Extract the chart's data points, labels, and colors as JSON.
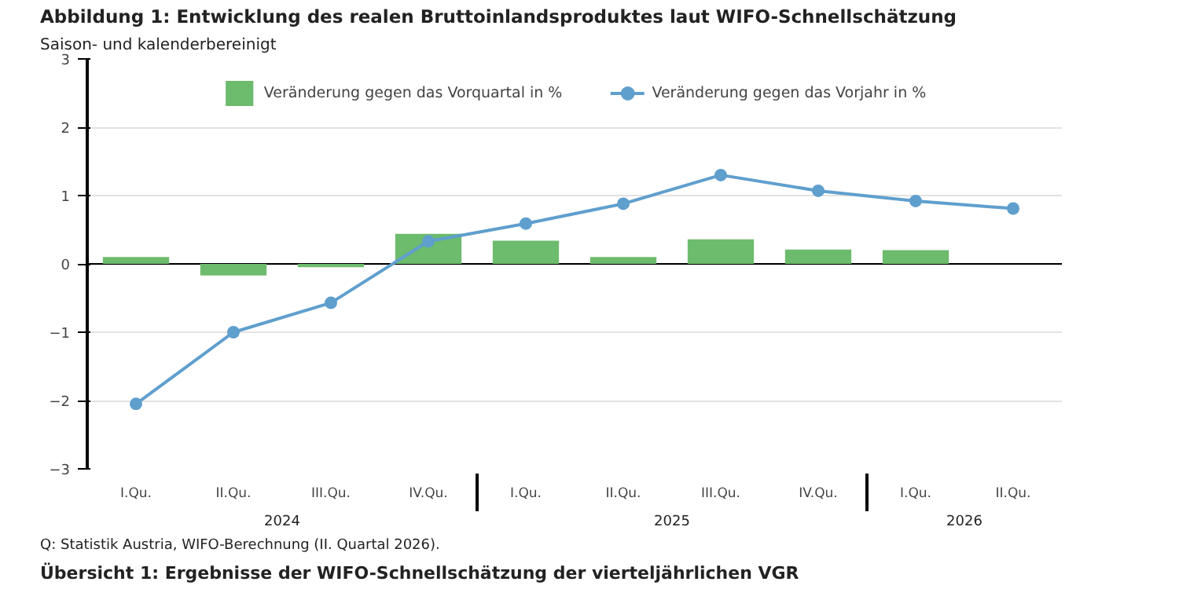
{
  "chart_data": {
    "type": "bar",
    "title": "Abbildung 1: Entwicklung des realen Bruttoinlandsproduktes laut WIFO-Schnellschätzung",
    "subtitle": "Saison- und kalenderbereinigt",
    "categories": [
      "I.Qu.",
      "II.Qu.",
      "III.Qu.",
      "IV.Qu.",
      "I.Qu.",
      "II.Qu.",
      "III.Qu.",
      "IV.Qu.",
      "I.Qu.",
      "II.Qu."
    ],
    "series": [
      {
        "name": "Veränderung gegen das Vorquartal in %",
        "color": "#6dbb6d",
        "values": [
          0.1,
          -0.17,
          -0.05,
          0.44,
          0.34,
          0.1,
          0.36,
          0.21,
          0.2,
          null
        ]
      },
      {
        "name": "Veränderung gegen das Vorjahr in %",
        "type": "line",
        "color": "#5f9fce",
        "values": [
          -2.05,
          -1.0,
          -0.57,
          0.33,
          0.59,
          0.88,
          1.3,
          1.07,
          0.92,
          0.81
        ]
      }
    ],
    "annotations": [
      "2024",
      "2025",
      "2026",
      "Q: Statistik Austria, WIFO-Berechnung (II. Quartal 2026).",
      "Übersicht 1: Ergebnisse der WIFO-Schnellschätzung der vierteljährlichen VGR"
    ],
    "ylim": [
      -3,
      3
    ],
    "yticks": [
      -3,
      -2,
      -1,
      0,
      1,
      2,
      3
    ],
    "grid": "y",
    "legend": "top",
    "marker": "circle",
    "line_style": "solid"
  }
}
